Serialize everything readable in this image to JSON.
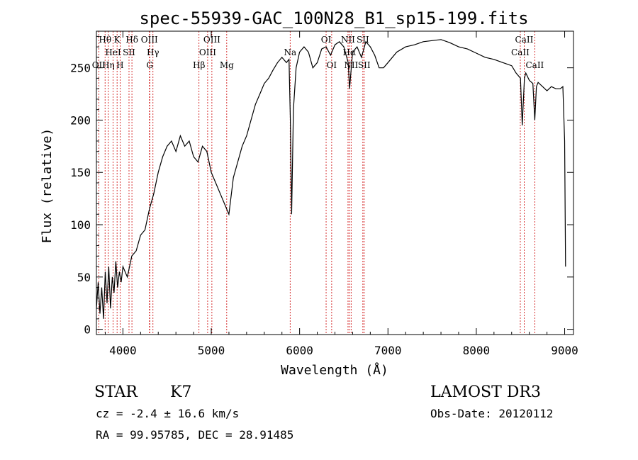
{
  "chart_data": {
    "type": "line",
    "title": "spec-55939-GAC_100N28_B1_sp15-199.fits",
    "xlabel": "Wavelength (Å)",
    "ylabel": "Flux (relative)",
    "xlim": [
      3700,
      9100
    ],
    "ylim": [
      -5,
      285
    ],
    "xticks": [
      4000,
      5000,
      6000,
      7000,
      8000,
      9000
    ],
    "yticks": [
      0,
      50,
      100,
      150,
      200,
      250
    ],
    "series": [
      {
        "name": "spectrum",
        "x": [
          3700,
          3720,
          3740,
          3760,
          3780,
          3800,
          3820,
          3840,
          3860,
          3880,
          3900,
          3920,
          3940,
          3960,
          3980,
          4000,
          4050,
          4100,
          4150,
          4200,
          4250,
          4300,
          4350,
          4400,
          4450,
          4500,
          4550,
          4600,
          4650,
          4700,
          4750,
          4800,
          4850,
          4900,
          4950,
          5000,
          5050,
          5100,
          5150,
          5200,
          5250,
          5300,
          5350,
          5400,
          5450,
          5500,
          5550,
          5600,
          5650,
          5700,
          5750,
          5800,
          5850,
          5880,
          5895,
          5910,
          5930,
          5960,
          6000,
          6050,
          6100,
          6150,
          6200,
          6250,
          6300,
          6350,
          6400,
          6450,
          6500,
          6550,
          6565,
          6600,
          6650,
          6700,
          6750,
          6800,
          6850,
          6900,
          6950,
          7000,
          7100,
          7200,
          7300,
          7400,
          7500,
          7600,
          7700,
          7800,
          7900,
          8000,
          8100,
          8200,
          8300,
          8400,
          8450,
          8500,
          8520,
          8545,
          8560,
          8600,
          8640,
          8662,
          8680,
          8700,
          8750,
          8800,
          8850,
          8900,
          8950,
          8980,
          9000,
          9010
        ],
        "values": [
          20,
          45,
          15,
          40,
          10,
          55,
          25,
          60,
          20,
          50,
          35,
          65,
          40,
          55,
          45,
          60,
          50,
          70,
          75,
          90,
          95,
          115,
          130,
          150,
          165,
          175,
          180,
          170,
          185,
          175,
          180,
          165,
          160,
          175,
          170,
          150,
          140,
          130,
          120,
          110,
          145,
          160,
          175,
          185,
          200,
          215,
          225,
          235,
          240,
          248,
          255,
          260,
          255,
          258,
          200,
          110,
          210,
          250,
          265,
          270,
          265,
          250,
          255,
          268,
          270,
          262,
          272,
          275,
          270,
          255,
          230,
          265,
          270,
          260,
          275,
          270,
          262,
          250,
          250,
          255,
          265,
          270,
          272,
          275,
          276,
          277,
          274,
          270,
          268,
          264,
          260,
          258,
          255,
          252,
          245,
          240,
          195,
          240,
          245,
          238,
          235,
          200,
          232,
          236,
          232,
          228,
          232,
          230,
          230,
          232,
          180,
          60
        ]
      }
    ],
    "line_ids": [
      {
        "name": "OII",
        "wavelength": 3727,
        "row": 3
      },
      {
        "name": "Hθ",
        "wavelength": 3798,
        "row": 1
      },
      {
        "name": "Hη",
        "wavelength": 3835,
        "row": 3
      },
      {
        "name": "HeI",
        "wavelength": 3889,
        "row": 2
      },
      {
        "name": "K",
        "wavelength": 3934,
        "row": 1
      },
      {
        "name": "H",
        "wavelength": 3968,
        "row": 3
      },
      {
        "name": "SII",
        "wavelength": 4069,
        "row": 2
      },
      {
        "name": "Hδ",
        "wavelength": 4102,
        "row": 1
      },
      {
        "name": "OIII",
        "wavelength": 4300,
        "row": 1
      },
      {
        "name": "G",
        "wavelength": 4304,
        "row": 3
      },
      {
        "name": "Hγ",
        "wavelength": 4340,
        "row": 2
      },
      {
        "name": "Hβ",
        "wavelength": 4861,
        "row": 3
      },
      {
        "name": "OIII",
        "wavelength": 4959,
        "row": 2
      },
      {
        "name": "OIII",
        "wavelength": 5007,
        "row": 1
      },
      {
        "name": "Mg",
        "wavelength": 5175,
        "row": 3
      },
      {
        "name": "Na",
        "wavelength": 5893,
        "row": 2
      },
      {
        "name": "OI",
        "wavelength": 6300,
        "row": 1
      },
      {
        "name": "OI",
        "wavelength": 6363,
        "row": 3
      },
      {
        "name": "NII",
        "wavelength": 6548,
        "row": 1
      },
      {
        "name": "Hα",
        "wavelength": 6563,
        "row": 2
      },
      {
        "name": "NII",
        "wavelength": 6583,
        "row": 3
      },
      {
        "name": "SII",
        "wavelength": 6716,
        "row": 1
      },
      {
        "name": "SII",
        "wavelength": 6731,
        "row": 3
      },
      {
        "name": "CaII",
        "wavelength": 8498,
        "row": 2
      },
      {
        "name": "CaII",
        "wavelength": 8542,
        "row": 1
      },
      {
        "name": "CaII",
        "wavelength": 8662,
        "row": 3
      }
    ]
  },
  "info": {
    "class": "STAR",
    "subclass": "K7",
    "survey": "LAMOST DR3",
    "cz": "cz = -2.4 ± 16.6 km/s",
    "obs_date": "Obs-Date: 20120112",
    "coords": "RA =  99.95785, DEC =  28.91485"
  }
}
